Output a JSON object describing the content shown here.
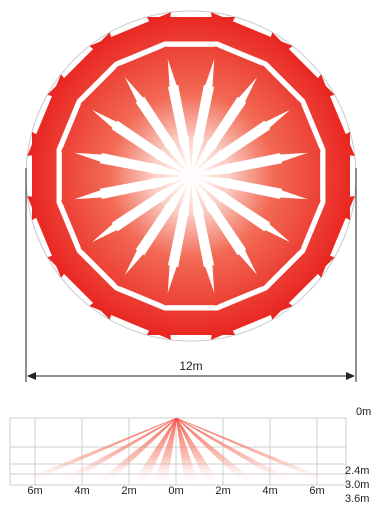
{
  "top_view": {
    "width_label": "12m",
    "zone_count": 16
  },
  "side_view": {
    "height_labels": [
      "0m",
      "2.4m",
      "3.0m",
      "3.6m"
    ],
    "distance_labels": [
      "6m",
      "4m",
      "2m",
      "0m",
      "2m",
      "4m",
      "6m"
    ]
  },
  "colors": {
    "zone_outer": "#ee2a24",
    "zone_center": "#ffffff",
    "outline": "#c8c8c8",
    "grid": "#cfcfcf",
    "dimension": "#222222"
  }
}
